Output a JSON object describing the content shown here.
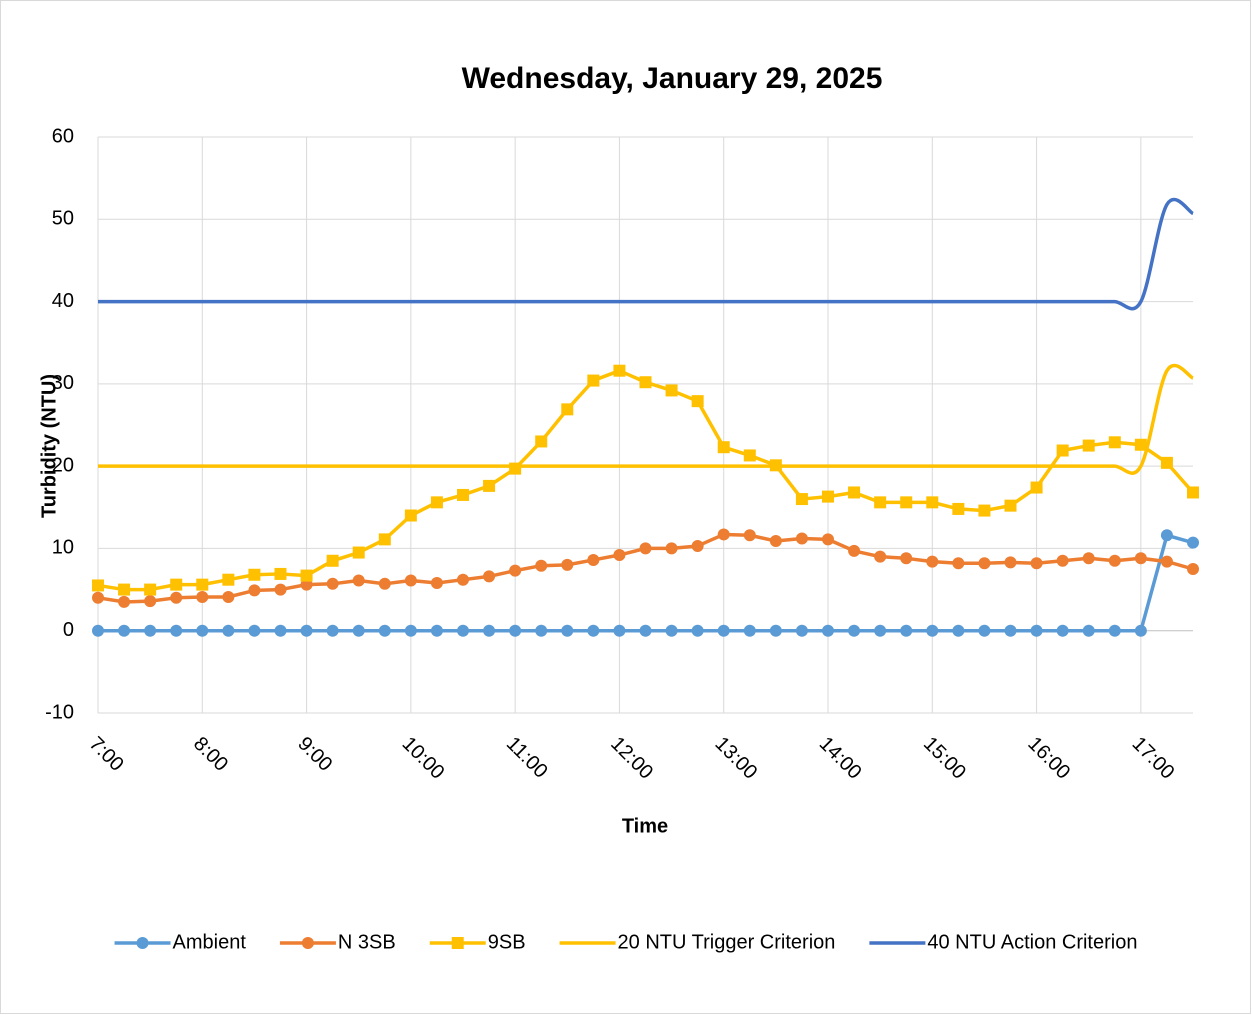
{
  "chart_data": {
    "type": "line",
    "title": "Wednesday, January 29, 2025",
    "xlabel": "Time",
    "ylabel": "Turbidity (NTU)",
    "x": [
      7,
      7.25,
      7.5,
      7.75,
      8,
      8.25,
      8.5,
      8.75,
      9,
      9.25,
      9.5,
      9.75,
      10,
      10.25,
      10.5,
      10.75,
      11,
      11.25,
      11.5,
      11.75,
      12,
      12.25,
      12.5,
      12.75,
      13,
      13.25,
      13.5,
      13.75,
      14,
      14.25,
      14.5,
      14.75,
      15,
      15.25,
      15.5,
      15.75,
      16,
      16.25,
      16.5,
      16.75,
      17,
      17.25,
      17.5
    ],
    "xlim": [
      7,
      17.5
    ],
    "xticks": [
      {
        "value": 7,
        "label": "7:00"
      },
      {
        "value": 8,
        "label": "8:00"
      },
      {
        "value": 9,
        "label": "9:00"
      },
      {
        "value": 10,
        "label": "10:00"
      },
      {
        "value": 11,
        "label": "11:00"
      },
      {
        "value": 12,
        "label": "12:00"
      },
      {
        "value": 13,
        "label": "13:00"
      },
      {
        "value": 14,
        "label": "14:00"
      },
      {
        "value": 15,
        "label": "15:00"
      },
      {
        "value": 16,
        "label": "16:00"
      },
      {
        "value": 17,
        "label": "17:00"
      }
    ],
    "ylim": [
      -10,
      60
    ],
    "yticks": [
      -10,
      0,
      10,
      20,
      30,
      40,
      50,
      60
    ],
    "grid": true,
    "legend": "bottom",
    "series": [
      {
        "name": "Ambient",
        "color": "#5b9bd5",
        "marker": "circle",
        "smooth": false,
        "values": [
          0,
          0,
          0,
          0,
          0,
          0,
          0,
          0,
          0,
          0,
          0,
          0,
          0,
          0,
          0,
          0,
          0,
          0,
          0,
          0,
          0,
          0,
          0,
          0,
          0,
          0,
          0,
          0,
          0,
          0,
          0,
          0,
          0,
          0,
          0,
          0,
          0,
          0,
          0,
          0,
          0,
          11.6,
          10.7
        ]
      },
      {
        "name": "N 3SB",
        "color": "#ed7d31",
        "marker": "circle",
        "smooth": false,
        "values": [
          4.0,
          3.5,
          3.6,
          4.0,
          4.1,
          4.1,
          4.9,
          5.0,
          5.6,
          5.7,
          6.1,
          5.7,
          6.1,
          5.8,
          6.2,
          6.6,
          7.3,
          7.9,
          8.0,
          8.6,
          9.2,
          10.0,
          10.0,
          10.3,
          11.7,
          11.6,
          10.9,
          11.2,
          11.1,
          9.7,
          9.0,
          8.8,
          8.4,
          8.2,
          8.2,
          8.3,
          8.2,
          8.5,
          8.8,
          8.5,
          8.8,
          8.4,
          7.5
        ]
      },
      {
        "name": "9SB",
        "color": "#ffc000",
        "marker": "square",
        "smooth": false,
        "values": [
          5.5,
          5.0,
          5.0,
          5.6,
          5.6,
          6.2,
          6.8,
          6.9,
          6.7,
          8.5,
          9.5,
          11.1,
          14.0,
          15.6,
          16.5,
          17.6,
          19.7,
          23.0,
          26.9,
          30.4,
          31.6,
          30.2,
          29.2,
          27.9,
          22.3,
          21.3,
          20.1,
          16.0,
          16.3,
          16.8,
          15.6,
          15.6,
          15.6,
          14.8,
          14.6,
          15.2,
          17.4,
          21.9,
          22.5,
          22.9,
          22.6,
          20.4,
          16.8
        ]
      },
      {
        "name": "20 NTU Trigger Criterion",
        "color": "#ffc000",
        "marker": "none",
        "smooth": true,
        "values": [
          20,
          20,
          20,
          20,
          20,
          20,
          20,
          20,
          20,
          20,
          20,
          20,
          20,
          20,
          20,
          20,
          20,
          20,
          20,
          20,
          20,
          20,
          20,
          20,
          20,
          20,
          20,
          20,
          20,
          20,
          20,
          20,
          20,
          20,
          20,
          20,
          20,
          20,
          20,
          20,
          20,
          31.6,
          30.7
        ]
      },
      {
        "name": "40 NTU Action Criterion",
        "color": "#4472c4",
        "marker": "none",
        "smooth": true,
        "values": [
          40,
          40,
          40,
          40,
          40,
          40,
          40,
          40,
          40,
          40,
          40,
          40,
          40,
          40,
          40,
          40,
          40,
          40,
          40,
          40,
          40,
          40,
          40,
          40,
          40,
          40,
          40,
          40,
          40,
          40,
          40,
          40,
          40,
          40,
          40,
          40,
          40,
          40,
          40,
          40,
          40,
          51.8,
          50.7
        ]
      }
    ]
  }
}
